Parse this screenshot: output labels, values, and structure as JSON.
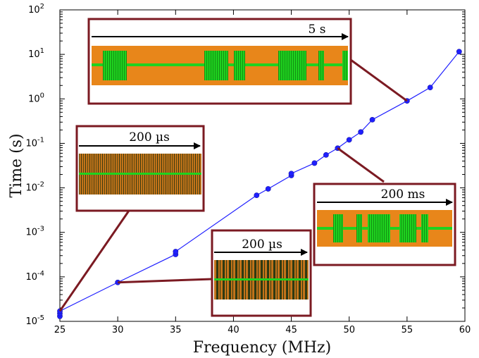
{
  "chart_data": {
    "type": "scatter",
    "xlabel": "Frequency (MHz)",
    "ylabel": "Time (s)",
    "xlim": [
      25,
      60
    ],
    "ylim": [
      1e-05,
      100
    ],
    "yscale": "log",
    "x_ticks": [
      "25",
      "30",
      "35",
      "40",
      "45",
      "50",
      "55",
      "60"
    ],
    "y_ticks": [
      {
        "base": "10",
        "exp": "-5"
      },
      {
        "base": "10",
        "exp": "-4"
      },
      {
        "base": "10",
        "exp": "-3"
      },
      {
        "base": "10",
        "exp": "-2"
      },
      {
        "base": "10",
        "exp": "-1"
      },
      {
        "base": "10",
        "exp": "0"
      },
      {
        "base": "10",
        "exp": "1"
      },
      {
        "base": "10",
        "exp": "2"
      }
    ],
    "grid": false,
    "series": [
      {
        "color": "#1f1fff",
        "points": [
          {
            "x": 25,
            "y": 1.3e-05
          },
          {
            "x": 25,
            "y": 1.5e-05
          },
          {
            "x": 25,
            "y": 1.7e-05
          },
          {
            "x": 30,
            "y": 7.5e-05
          },
          {
            "x": 35,
            "y": 0.00032
          },
          {
            "x": 35,
            "y": 0.00037
          },
          {
            "x": 42,
            "y": 0.0068
          },
          {
            "x": 43,
            "y": 0.0095
          },
          {
            "x": 45,
            "y": 0.019
          },
          {
            "x": 45,
            "y": 0.021
          },
          {
            "x": 47,
            "y": 0.036
          },
          {
            "x": 48,
            "y": 0.055
          },
          {
            "x": 49,
            "y": 0.078
          },
          {
            "x": 50,
            "y": 0.12
          },
          {
            "x": 51,
            "y": 0.18
          },
          {
            "x": 52,
            "y": 0.34
          },
          {
            "x": 55,
            "y": 0.9
          },
          {
            "x": 57,
            "y": 1.8
          },
          {
            "x": 59.5,
            "y": 11.5
          }
        ]
      }
    ],
    "insets": [
      {
        "label": "5 s",
        "x": 55,
        "y": 0.9
      },
      {
        "label": "200 ms",
        "x": 49,
        "y": 0.078
      },
      {
        "label": "200 µs",
        "x": 30,
        "y": 7.5e-05
      },
      {
        "label": "200 µs",
        "x": 25,
        "y": 1.7e-05
      }
    ],
    "colors": {
      "frame": "#7b1a22",
      "signal_bg": "#e8861a",
      "signal_burst": "#1fd21f",
      "marker": "#1f1fff"
    }
  }
}
